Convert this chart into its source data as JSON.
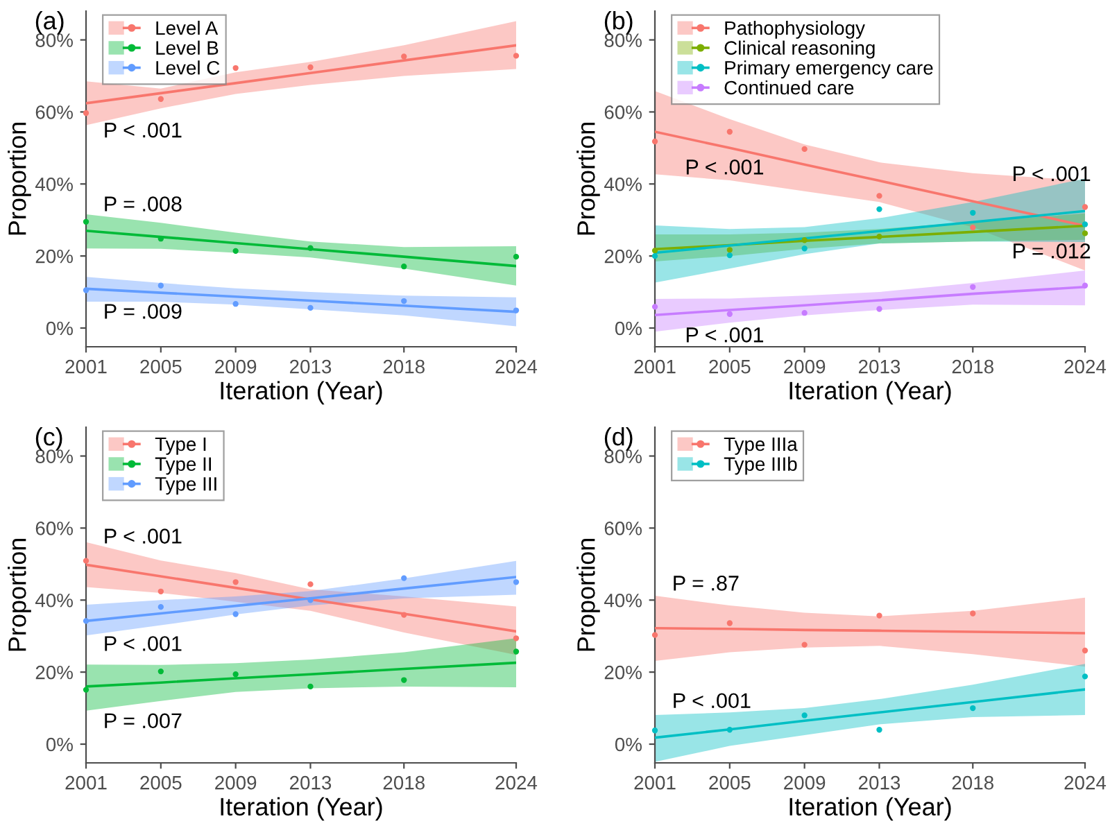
{
  "chart_data": [
    {
      "type": "scatter",
      "title": "(a)",
      "xlabel": "Iteration (Year)",
      "ylabel": "Proportion",
      "x": [
        2001,
        2005,
        2009,
        2013,
        2018,
        2024
      ],
      "xlim": [
        2001,
        2024
      ],
      "xticks": [
        2001,
        2005,
        2009,
        2013,
        2018,
        2024
      ],
      "ylim": [
        -5.2,
        88
      ],
      "yticks": [
        {
          "value": 0,
          "label": "0%"
        },
        {
          "value": 20,
          "label": "20%"
        },
        {
          "value": 40,
          "label": "40%"
        },
        {
          "value": 60,
          "label": "60%"
        },
        {
          "value": 80,
          "label": "80%"
        }
      ],
      "legend": "top left",
      "grid": false,
      "series": [
        {
          "name": "Level A",
          "marker": "circle",
          "color": "#f8766d",
          "values": [
            59.7,
            63.6,
            72.2,
            72.4,
            75.4,
            75.6
          ]
        },
        {
          "type": "line",
          "color": "#f8766d",
          "x": [
            2001,
            2005,
            2009,
            2013,
            2018,
            2024
          ],
          "values": [
            62.4,
            65.2,
            68.0,
            70.8,
            74.3,
            78.5
          ],
          "lower": [
            56.3,
            61,
            65,
            67.5,
            70,
            71.9
          ],
          "upper": [
            68.5,
            66.5,
            71,
            73.9,
            78.5,
            85.2
          ]
        },
        {
          "name": "Level B",
          "marker": "circle",
          "color": "#00ba38",
          "values": [
            29.5,
            24.8,
            21.4,
            22.2,
            17.1,
            19.8
          ]
        },
        {
          "type": "line",
          "color": "#00ba38",
          "x": [
            2001,
            2005,
            2009,
            2013,
            2018,
            2024
          ],
          "values": [
            27.0,
            25.3,
            23.6,
            21.9,
            19.8,
            17.2
          ],
          "lower": [
            22.1,
            22,
            20.9,
            19.6,
            16.5,
            11.8
          ],
          "upper": [
            31.6,
            29.2,
            26.5,
            24.0,
            22.5,
            22.7
          ]
        },
        {
          "name": "Level C",
          "marker": "circle",
          "color": "#619cff",
          "values": [
            10.5,
            11.8,
            6.7,
            5.6,
            7.5,
            4.9
          ]
        },
        {
          "type": "line",
          "color": "#619cff",
          "x": [
            2001,
            2005,
            2009,
            2013,
            2018,
            2024
          ],
          "values": [
            10.9,
            9.8,
            8.7,
            7.6,
            6.2,
            4.5
          ],
          "lower": [
            7.3,
            7.3,
            6.5,
            5.2,
            3.5,
            0.5
          ],
          "upper": [
            14.2,
            12.5,
            11,
            10,
            9,
            8.5
          ]
        }
      ],
      "annotations": [
        "P < .001",
        "P = .008",
        "P = .009"
      ]
    },
    {
      "type": "scatter",
      "title": "(b)",
      "xlabel": "Iteration (Year)",
      "ylabel": "Proportion",
      "x": [
        2001,
        2005,
        2009,
        2013,
        2018,
        2024
      ],
      "xlim": [
        2001,
        2024
      ],
      "xticks": [
        2001,
        2005,
        2009,
        2013,
        2018,
        2024
      ],
      "ylim": [
        -5.2,
        88
      ],
      "yticks": [
        {
          "value": 0,
          "label": "0%"
        },
        {
          "value": 20,
          "label": "20%"
        },
        {
          "value": 40,
          "label": "40%"
        },
        {
          "value": 60,
          "label": "60%"
        },
        {
          "value": 80,
          "label": "80%"
        }
      ],
      "legend": "top left",
      "grid": false,
      "series": [
        {
          "name": "Pathophysiology",
          "marker": "circle",
          "color": "#f8766d",
          "values": [
            51.8,
            54.5,
            49.7,
            36.7,
            27.9,
            33.6
          ]
        },
        {
          "type": "line",
          "color": "#f8766d",
          "x": [
            2001,
            2005,
            2009,
            2013,
            2018,
            2024
          ],
          "values": [
            54.5,
            50.0,
            45.4,
            40.9,
            35.2,
            28.4
          ],
          "lower": [
            42.7,
            41,
            38,
            35,
            28,
            16.0
          ],
          "upper": [
            65.8,
            58,
            51,
            46,
            43,
            40.9
          ]
        },
        {
          "name": "Clinical reasoning",
          "marker": "circle",
          "color": "#7cae00",
          "values": [
            21.5,
            21.7,
            24.4,
            25.4,
            null,
            26.3
          ]
        },
        {
          "type": "line",
          "color": "#7cae00",
          "x": [
            2001,
            2005,
            2009,
            2013,
            2018,
            2024
          ],
          "values": [
            21.9,
            23.0,
            24.2,
            25.3,
            26.7,
            28.4
          ],
          "lower": [
            18.5,
            20,
            22,
            23.5,
            24,
            24.5
          ],
          "upper": [
            26,
            26,
            26.5,
            27.5,
            29.5,
            31.8
          ]
        },
        {
          "name": "Primary emergency care",
          "marker": "circle",
          "color": "#00bfc4",
          "values": [
            20,
            20.2,
            22.1,
            33.0,
            32.0,
            28.8
          ]
        },
        {
          "type": "line",
          "color": "#00bfc4",
          "x": [
            2001,
            2005,
            2009,
            2013,
            2018,
            2024
          ],
          "values": [
            20.9,
            22.9,
            24.9,
            26.9,
            29.4,
            32.5
          ],
          "lower": [
            12.6,
            16.5,
            20.5,
            23.5,
            24,
            23.9
          ],
          "upper": [
            28.5,
            27.5,
            28,
            30.5,
            35,
            41.5
          ]
        },
        {
          "name": "Continued care",
          "marker": "circle",
          "color": "#c77cff",
          "values": [
            5.9,
            3.9,
            4.2,
            5.3,
            11.4,
            11.8
          ]
        },
        {
          "type": "line",
          "color": "#c77cff",
          "x": [
            2001,
            2005,
            2009,
            2013,
            2018,
            2024
          ],
          "values": [
            3.6,
            5.0,
            6.3,
            7.7,
            9.5,
            11.4
          ],
          "lower": [
            -1.0,
            1.5,
            3.5,
            5,
            6.5,
            6.3
          ],
          "upper": [
            8.1,
            8.2,
            9,
            10,
            12.5,
            16.0
          ]
        }
      ],
      "annotations": [
        "P < .001",
        "P < .001",
        "P = .012",
        "P < .001"
      ]
    },
    {
      "type": "scatter",
      "title": "(c)",
      "xlabel": "Iteration (Year)",
      "ylabel": "Proportion",
      "x": [
        2001,
        2005,
        2009,
        2013,
        2018,
        2024
      ],
      "xlim": [
        2001,
        2024
      ],
      "xticks": [
        2001,
        2005,
        2009,
        2013,
        2018,
        2024
      ],
      "ylim": [
        -5.2,
        88
      ],
      "yticks": [
        {
          "value": 0,
          "label": "0%"
        },
        {
          "value": 20,
          "label": "20%"
        },
        {
          "value": 40,
          "label": "40%"
        },
        {
          "value": 60,
          "label": "60%"
        },
        {
          "value": 80,
          "label": "80%"
        }
      ],
      "legend": "top left",
      "grid": false,
      "series": [
        {
          "name": "Type I",
          "marker": "circle",
          "color": "#f8766d",
          "values": [
            50.9,
            42.4,
            45.0,
            44.4,
            35.9,
            29.4
          ]
        },
        {
          "type": "line",
          "color": "#f8766d",
          "x": [
            2001,
            2005,
            2009,
            2013,
            2018,
            2024
          ],
          "values": [
            49.8,
            46.6,
            43.4,
            40.2,
            36.2,
            31.3
          ],
          "lower": [
            43.6,
            42,
            39.5,
            37,
            31,
            24.8
          ],
          "upper": [
            56.1,
            51,
            47.5,
            43,
            41,
            38.2
          ]
        },
        {
          "name": "Type II",
          "marker": "circle",
          "color": "#00ba38",
          "values": [
            15.1,
            20.2,
            19.4,
            16.0,
            17.8,
            25.7
          ]
        },
        {
          "type": "line",
          "color": "#00ba38",
          "x": [
            2001,
            2005,
            2009,
            2013,
            2018,
            2024
          ],
          "values": [
            16.0,
            17.1,
            18.3,
            19.4,
            20.9,
            22.6
          ],
          "lower": [
            9.3,
            12,
            14.5,
            15.5,
            16,
            15.8
          ],
          "upper": [
            22.1,
            22,
            22.5,
            23.5,
            25.5,
            29.4
          ]
        },
        {
          "name": "Type III",
          "marker": "circle",
          "color": "#619cff",
          "values": [
            34.2,
            38.1,
            36.1,
            40.0,
            46.1,
            45.0
          ]
        },
        {
          "type": "line",
          "color": "#619cff",
          "x": [
            2001,
            2005,
            2009,
            2013,
            2018,
            2024
          ],
          "values": [
            34.2,
            36.3,
            38.4,
            40.5,
            43.2,
            46.4
          ],
          "lower": [
            30.2,
            33,
            36,
            38.5,
            40.5,
            41.5
          ],
          "upper": [
            38.7,
            40,
            41,
            42.5,
            46,
            50.9
          ]
        }
      ],
      "annotations": [
        "P < .001",
        "P < .001",
        "P = .007"
      ]
    },
    {
      "type": "scatter",
      "title": "(d)",
      "xlabel": "Iteration (Year)",
      "ylabel": "Proportion",
      "x": [
        2001,
        2005,
        2009,
        2013,
        2018,
        2024
      ],
      "xlim": [
        2001,
        2024
      ],
      "xticks": [
        2001,
        2005,
        2009,
        2013,
        2018,
        2024
      ],
      "ylim": [
        -5.2,
        88
      ],
      "yticks": [
        {
          "value": 0,
          "label": "0%"
        },
        {
          "value": 20,
          "label": "20%"
        },
        {
          "value": 40,
          "label": "40%"
        },
        {
          "value": 60,
          "label": "60%"
        },
        {
          "value": 80,
          "label": "80%"
        }
      ],
      "legend": "top left",
      "grid": false,
      "series": [
        {
          "name": "Type IIIa",
          "marker": "circle",
          "color": "#f8766d",
          "values": [
            30.3,
            33.6,
            27.6,
            35.7,
            36.3,
            26.0
          ]
        },
        {
          "type": "line",
          "color": "#f8766d",
          "x": [
            2001,
            2005,
            2009,
            2013,
            2018,
            2024
          ],
          "values": [
            32.2,
            32.0,
            31.7,
            31.5,
            31.2,
            30.8
          ],
          "lower": [
            23.1,
            25.5,
            26.8,
            27.3,
            25,
            21.5
          ],
          "upper": [
            41.2,
            38.5,
            36.5,
            35.5,
            37,
            40.7
          ]
        },
        {
          "name": "Type IIIb",
          "marker": "circle",
          "color": "#00bfc4",
          "values": [
            3.8,
            4.0,
            8.0,
            4.0,
            10.0,
            18.8
          ]
        },
        {
          "type": "line",
          "color": "#00bfc4",
          "x": [
            2001,
            2005,
            2009,
            2013,
            2018,
            2024
          ],
          "values": [
            1.8,
            4.1,
            6.5,
            8.8,
            11.7,
            15.2
          ],
          "lower": [
            -4.9,
            -0.5,
            2.5,
            5.5,
            7.5,
            8.1
          ],
          "upper": [
            8.1,
            8.8,
            10,
            12.5,
            16.5,
            22.3
          ]
        }
      ],
      "annotations": [
        "P = .87",
        "P < .001"
      ]
    }
  ]
}
